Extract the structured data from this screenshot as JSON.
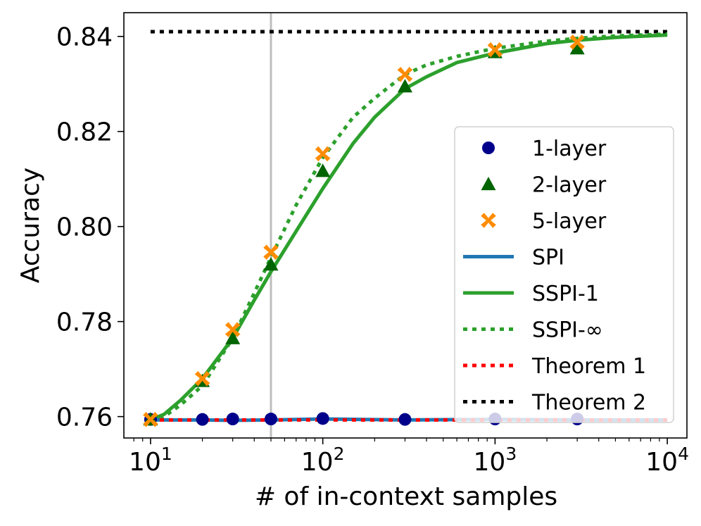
{
  "chart_data": {
    "type": "line",
    "title": "",
    "xlabel": "# of in-context samples",
    "ylabel": "Accuracy",
    "xscale": "log",
    "xlim": [
      7.0,
      13000
    ],
    "ylim": [
      0.7555,
      0.845
    ],
    "xticks": [
      {
        "value": 10,
        "base": "10",
        "exp": "1"
      },
      {
        "value": 100,
        "base": "10",
        "exp": "2"
      },
      {
        "value": 1000,
        "base": "10",
        "exp": "3"
      },
      {
        "value": 10000,
        "base": "10",
        "exp": "4"
      }
    ],
    "yticks": [
      {
        "value": 0.76,
        "label": "0.76"
      },
      {
        "value": 0.78,
        "label": "0.78"
      },
      {
        "value": 0.8,
        "label": "0.80"
      },
      {
        "value": 0.82,
        "label": "0.82"
      },
      {
        "value": 0.84,
        "label": "0.84"
      }
    ],
    "vline": {
      "x": 50,
      "color": "#bdbdbd"
    },
    "lines": [
      {
        "name": "SPI",
        "color": "#1f77b4",
        "style": "solid",
        "x": [
          10,
          20,
          30,
          50,
          100,
          300,
          1000,
          3000,
          10000
        ],
        "y": [
          0.7593,
          0.7593,
          0.7592,
          0.7593,
          0.7595,
          0.7593,
          0.7594,
          0.7593,
          0.7593
        ]
      },
      {
        "name": "SSPI-1",
        "color": "#2ca02c",
        "style": "solid",
        "x": [
          10,
          12,
          15,
          20,
          30,
          40,
          50,
          70,
          100,
          150,
          200,
          300,
          400,
          600,
          1000,
          2000,
          3000,
          5000,
          10000
        ],
        "y": [
          0.7593,
          0.7605,
          0.7635,
          0.768,
          0.7765,
          0.7845,
          0.7905,
          0.799,
          0.808,
          0.8175,
          0.823,
          0.829,
          0.8315,
          0.8345,
          0.8365,
          0.8385,
          0.8392,
          0.8398,
          0.8403
        ]
      },
      {
        "name": "SSPI-∞",
        "color": "#2ca02c",
        "style": "dotted",
        "x": [
          10,
          12,
          15,
          20,
          30,
          40,
          50,
          70,
          100,
          150,
          200,
          300,
          400,
          600,
          1000,
          2000,
          3000,
          5000,
          10000
        ],
        "y": [
          0.7593,
          0.76,
          0.7625,
          0.7665,
          0.7765,
          0.786,
          0.7935,
          0.8045,
          0.8145,
          0.823,
          0.827,
          0.832,
          0.834,
          0.8358,
          0.8375,
          0.839,
          0.8396,
          0.8401,
          0.8405
        ]
      },
      {
        "name": "Theorem 1",
        "color": "#ff0000",
        "style": "dotted",
        "x": [
          10,
          10000
        ],
        "y": [
          0.7593,
          0.7593
        ]
      },
      {
        "name": "Theorem 2",
        "color": "#000000",
        "style": "dotted",
        "x": [
          10,
          10000
        ],
        "y": [
          0.841,
          0.841
        ]
      }
    ],
    "markers": [
      {
        "name": "1-layer",
        "shape": "circle",
        "color": "#00008b",
        "x": [
          10,
          20,
          30,
          50,
          100,
          300,
          1000,
          3000
        ],
        "y": [
          0.7594,
          0.7594,
          0.7595,
          0.7595,
          0.7596,
          0.7594,
          0.7595,
          0.7595
        ]
      },
      {
        "name": "2-layer",
        "shape": "triangle",
        "color": "#006400",
        "x": [
          10,
          20,
          30,
          50,
          100,
          300,
          1000,
          3000
        ],
        "y": [
          0.7594,
          0.7675,
          0.7765,
          0.792,
          0.8117,
          0.8295,
          0.8367,
          0.8375
        ]
      },
      {
        "name": "5-layer",
        "shape": "x",
        "color": "#ff8c00",
        "x": [
          10,
          20,
          30,
          50,
          100,
          300,
          1000,
          3000
        ],
        "y": [
          0.7594,
          0.768,
          0.7783,
          0.7946,
          0.8153,
          0.832,
          0.8372,
          0.8388
        ]
      }
    ],
    "legend": {
      "position": "lower-right",
      "entries": [
        "1-layer",
        "2-layer",
        "5-layer",
        "SPI",
        "SSPI-1",
        "SSPI-∞",
        "Theorem 1",
        "Theorem 2"
      ]
    },
    "grid": false
  }
}
